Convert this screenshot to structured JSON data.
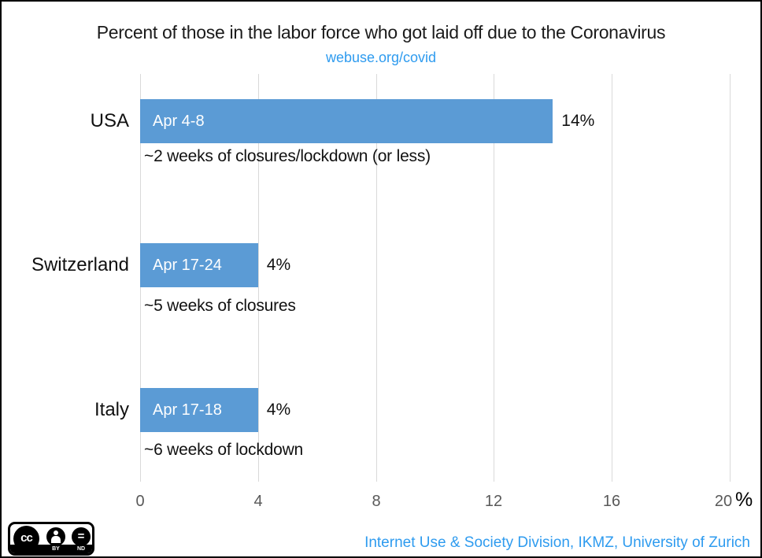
{
  "header": {
    "title": "Percent of those in the labor force who got laid off due to the Coronavirus",
    "subtitle_link": "webuse.org/covid"
  },
  "chart_data": {
    "type": "bar",
    "orientation": "horizontal",
    "title": "Percent of those in the labor force who got laid off due to the Coronavirus",
    "categories": [
      "USA",
      "Switzerland",
      "Italy"
    ],
    "values": [
      14,
      4,
      4
    ],
    "bar_labels": [
      "Apr 4-8",
      "Apr 17-24",
      "Apr 17-18"
    ],
    "value_labels": [
      "14%",
      "4%",
      "4%"
    ],
    "notes": [
      "~2 weeks of closures/lockdown (or less)",
      "~5 weeks of closures",
      "~6 weeks of lockdown"
    ],
    "xlim": [
      0,
      20
    ],
    "x_ticks": [
      "0",
      "4",
      "8",
      "12",
      "16",
      "20"
    ],
    "x_axis_suffix": "%",
    "grid": true,
    "legend": "none",
    "bar_color": "#5b9bd5",
    "gridline_color": "#d9d9d9",
    "tick_color": "#595959",
    "link_color": "#2e9bef"
  },
  "footer": {
    "credit": "Internet Use & Society Division, IKMZ, University of Zurich",
    "license": {
      "cc": "cc",
      "by": "BY",
      "nd": "ND"
    }
  }
}
